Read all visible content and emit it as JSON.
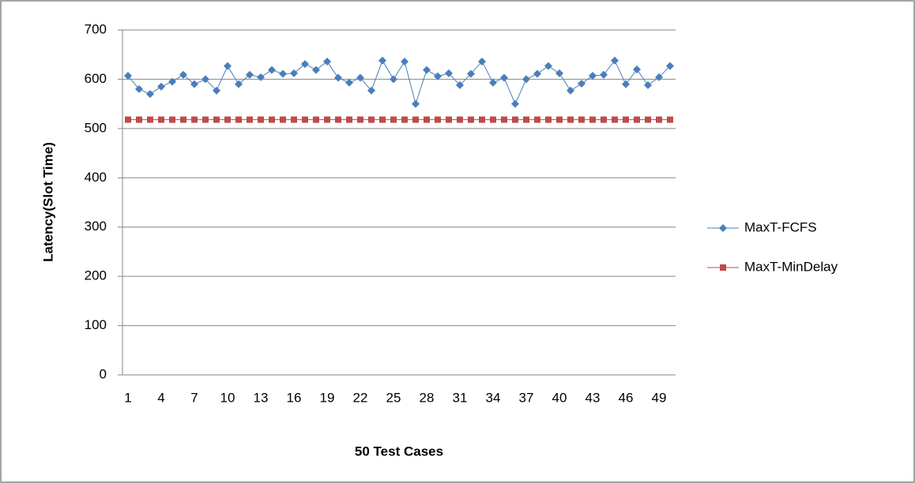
{
  "chart_data": {
    "type": "line",
    "xlabel": "50 Test Cases",
    "ylabel": "Latency(Slot Time)",
    "categories": [
      "1",
      null,
      null,
      "4",
      null,
      null,
      "7",
      null,
      null,
      "10",
      null,
      null,
      "13",
      null,
      null,
      "16",
      null,
      null,
      "19",
      null,
      null,
      "22",
      null,
      null,
      "25",
      null,
      null,
      "28",
      null,
      null,
      "31",
      null,
      null,
      "34",
      null,
      null,
      "37",
      null,
      null,
      "40",
      null,
      null,
      "43",
      null,
      null,
      "46",
      null,
      null,
      "49",
      null
    ],
    "series": [
      {
        "name": "MaxT-FCFS",
        "color": "#4a7ebb",
        "marker": "diamond",
        "values": [
          607,
          580,
          570,
          585,
          595,
          609,
          590,
          600,
          577,
          627,
          590,
          609,
          604,
          619,
          611,
          612,
          631,
          619,
          636,
          603,
          593,
          603,
          577,
          638,
          600,
          636,
          550,
          619,
          606,
          612,
          588,
          611,
          636,
          593,
          603,
          550,
          600,
          611,
          627,
          612,
          577,
          591,
          607,
          609,
          638,
          590,
          620,
          588,
          604,
          627
        ]
      },
      {
        "name": "MaxT-MinDelay",
        "color": "#be4b48",
        "marker": "square",
        "values": [
          518,
          518,
          518,
          518,
          518,
          518,
          518,
          518,
          518,
          518,
          518,
          518,
          518,
          518,
          518,
          518,
          518,
          518,
          518,
          518,
          518,
          518,
          518,
          518,
          518,
          518,
          518,
          518,
          518,
          518,
          518,
          518,
          518,
          518,
          518,
          518,
          518,
          518,
          518,
          518,
          518,
          518,
          518,
          518,
          518,
          518,
          518,
          518,
          518,
          518
        ]
      }
    ],
    "ylim": [
      0,
      700
    ],
    "yticks": [
      0,
      100,
      200,
      300,
      400,
      500,
      600,
      700
    ],
    "grid": true,
    "legend": "right"
  }
}
